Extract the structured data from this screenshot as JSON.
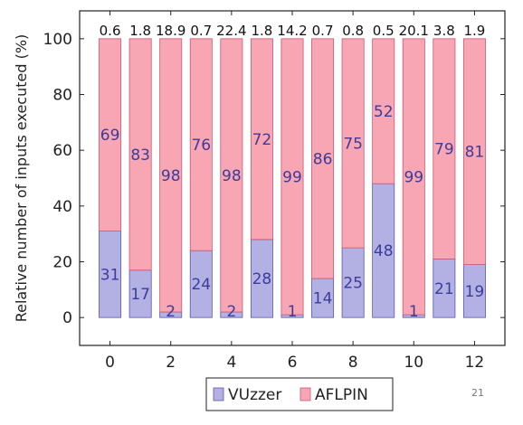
{
  "page_number": "21",
  "chart_data": {
    "type": "bar",
    "stacked": true,
    "x": [
      0,
      1,
      2,
      3,
      4,
      5,
      6,
      7,
      8,
      9,
      10,
      11,
      12
    ],
    "x_ticks": [
      "0",
      "2",
      "4",
      "6",
      "8",
      "10",
      "12"
    ],
    "x_tick_values": [
      0,
      2,
      4,
      6,
      8,
      10,
      12
    ],
    "series": [
      {
        "name": "VUzzer",
        "color": "#b3b0e3",
        "values": [
          31,
          17,
          2,
          24,
          2,
          28,
          1,
          14,
          25,
          48,
          1,
          21,
          19
        ]
      },
      {
        "name": "AFLPIN",
        "color": "#f8a6b3",
        "values": [
          69,
          83,
          98,
          76,
          98,
          72,
          99,
          86,
          75,
          52,
          99,
          79,
          81
        ]
      }
    ],
    "top_labels": [
      "0.6",
      "1.8",
      "18.9",
      "0.7",
      "22.4",
      "1.8",
      "14.2",
      "0.7",
      "0.8",
      "0.5",
      "20.1",
      "3.8",
      "1.9"
    ],
    "ylabel": "Relative number of inputs executed (%)",
    "xlabel": "",
    "y_ticks": [
      0,
      20,
      40,
      60,
      80,
      100
    ],
    "ylim": [
      -10,
      110
    ],
    "xlim": [
      -1,
      13
    ],
    "grid": false,
    "legend_position": "bottom-center"
  }
}
